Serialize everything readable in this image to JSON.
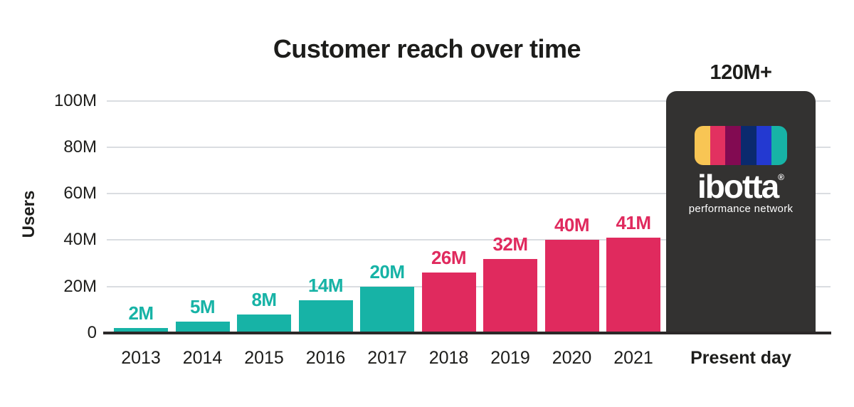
{
  "chart_data": {
    "type": "bar",
    "title": "Customer reach over time",
    "ylabel": "Users",
    "xlabel": "",
    "ylim": [
      0,
      100
    ],
    "grid": "horizontal",
    "legend": "none",
    "yticks": [
      {
        "value": 0,
        "label": "0"
      },
      {
        "value": 20,
        "label": "20M"
      },
      {
        "value": 40,
        "label": "40M"
      },
      {
        "value": 60,
        "label": "60M"
      },
      {
        "value": 80,
        "label": "80M"
      },
      {
        "value": 100,
        "label": "100M"
      }
    ],
    "bars": [
      {
        "category": "2013",
        "value": 2,
        "label": "2M",
        "color": "#17b3a6"
      },
      {
        "category": "2014",
        "value": 5,
        "label": "5M",
        "color": "#17b3a6"
      },
      {
        "category": "2015",
        "value": 8,
        "label": "8M",
        "color": "#17b3a6"
      },
      {
        "category": "2016",
        "value": 14,
        "label": "14M",
        "color": "#17b3a6"
      },
      {
        "category": "2017",
        "value": 20,
        "label": "20M",
        "color": "#17b3a6"
      },
      {
        "category": "2018",
        "value": 26,
        "label": "26M",
        "color": "#e02a5e"
      },
      {
        "category": "2019",
        "value": 32,
        "label": "32M",
        "color": "#e02a5e"
      },
      {
        "category": "2020",
        "value": 40,
        "label": "40M",
        "color": "#e02a5e"
      },
      {
        "category": "2021",
        "value": 41,
        "label": "41M",
        "color": "#e02a5e"
      }
    ],
    "highlight_bar": {
      "category": "Present day",
      "label": "120M+",
      "value": 120,
      "drawn_height_value": 104,
      "color": "#333231",
      "label_color": "#1d1d1b"
    },
    "colors": {
      "teal": "#17b3a6",
      "pink": "#e02a5e",
      "dark": "#333231",
      "grid": "#dadde1",
      "axis": "#2b2828",
      "text": "#1d1d1b"
    }
  },
  "logo": {
    "brand": "ibotta",
    "registered_mark": "®",
    "tagline": "performance network",
    "text_color": "#ffffff",
    "stripe_colors": [
      "#f8c554",
      "#e23160",
      "#820a52",
      "#0a2a6e",
      "#2339d1",
      "#17b3a6"
    ]
  }
}
